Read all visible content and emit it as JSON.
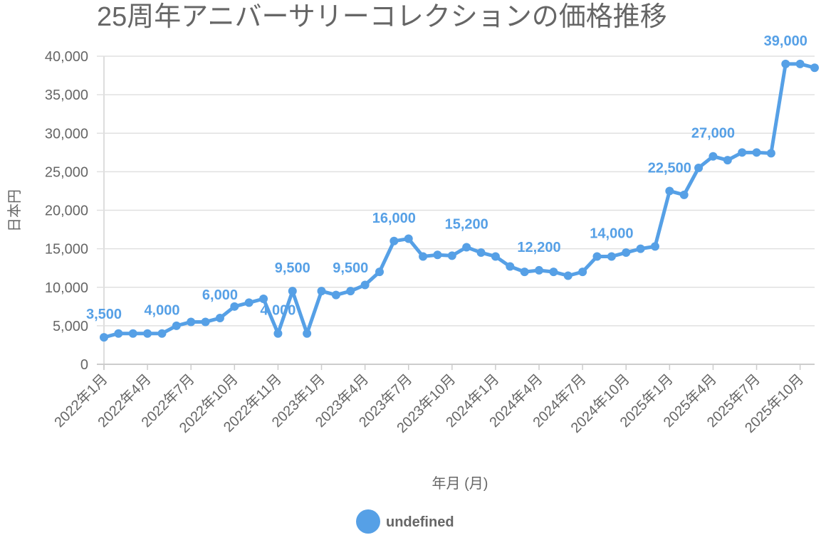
{
  "chart_data": {
    "type": "line",
    "title": "25周年アニバーサリーコレクションの価格推移",
    "xlabel": "年月 (月)",
    "ylabel": "日本円",
    "ylim": [
      0,
      40000
    ],
    "y_ticks": [
      "0",
      "5,000",
      "10,000",
      "15,000",
      "20,000",
      "25,000",
      "30,000",
      "35,000",
      "40,000"
    ],
    "grid": "horizontal",
    "x_ticks": [
      {
        "index": 0,
        "label": "2022年1月"
      },
      {
        "index": 3,
        "label": "2022年4月"
      },
      {
        "index": 6,
        "label": "2022年7月"
      },
      {
        "index": 9,
        "label": "2022年10月"
      },
      {
        "index": 12,
        "label": "2022年11月"
      },
      {
        "index": 15,
        "label": "2023年1月"
      },
      {
        "index": 18,
        "label": "2023年4月"
      },
      {
        "index": 21,
        "label": "2023年7月"
      },
      {
        "index": 24,
        "label": "2023年10月"
      },
      {
        "index": 27,
        "label": "2024年1月"
      },
      {
        "index": 30,
        "label": "2024年4月"
      },
      {
        "index": 33,
        "label": "2024年7月"
      },
      {
        "index": 36,
        "label": "2024年10月"
      },
      {
        "index": 39,
        "label": "2025年1月"
      },
      {
        "index": 42,
        "label": "2025年4月"
      },
      {
        "index": 45,
        "label": "2025年7月"
      },
      {
        "index": 48,
        "label": "2025年10月"
      }
    ],
    "series": [
      {
        "name": "undefined",
        "color": "#56a0e6",
        "values": [
          3500,
          4000,
          4000,
          4000,
          4000,
          5000,
          5500,
          5500,
          6000,
          7500,
          8000,
          8500,
          4000,
          9500,
          4000,
          9500,
          9000,
          9500,
          10300,
          12000,
          16000,
          16300,
          14000,
          14200,
          14100,
          15200,
          14500,
          14000,
          12700,
          12000,
          12200,
          12000,
          11500,
          12000,
          14000,
          14000,
          14500,
          15000,
          15300,
          22500,
          22000,
          25500,
          27000,
          26500,
          27500,
          27500,
          27400,
          39000,
          39000,
          38500
        ]
      }
    ],
    "data_labels": [
      {
        "index": 0,
        "label": "3,500"
      },
      {
        "index": 4,
        "label": "4,000"
      },
      {
        "index": 8,
        "label": "6,000"
      },
      {
        "index": 12,
        "label": "4,000"
      },
      {
        "index": 13,
        "label": "9,500"
      },
      {
        "index": 17,
        "label": "9,500"
      },
      {
        "index": 20,
        "label": "16,000"
      },
      {
        "index": 25,
        "label": "15,200"
      },
      {
        "index": 30,
        "label": "12,200"
      },
      {
        "index": 35,
        "label": "14,000"
      },
      {
        "index": 39,
        "label": "22,500"
      },
      {
        "index": 42,
        "label": "27,000"
      },
      {
        "index": 47,
        "label": "39,000"
      }
    ],
    "legend": {
      "position": "bottom",
      "label": "undefined"
    }
  }
}
